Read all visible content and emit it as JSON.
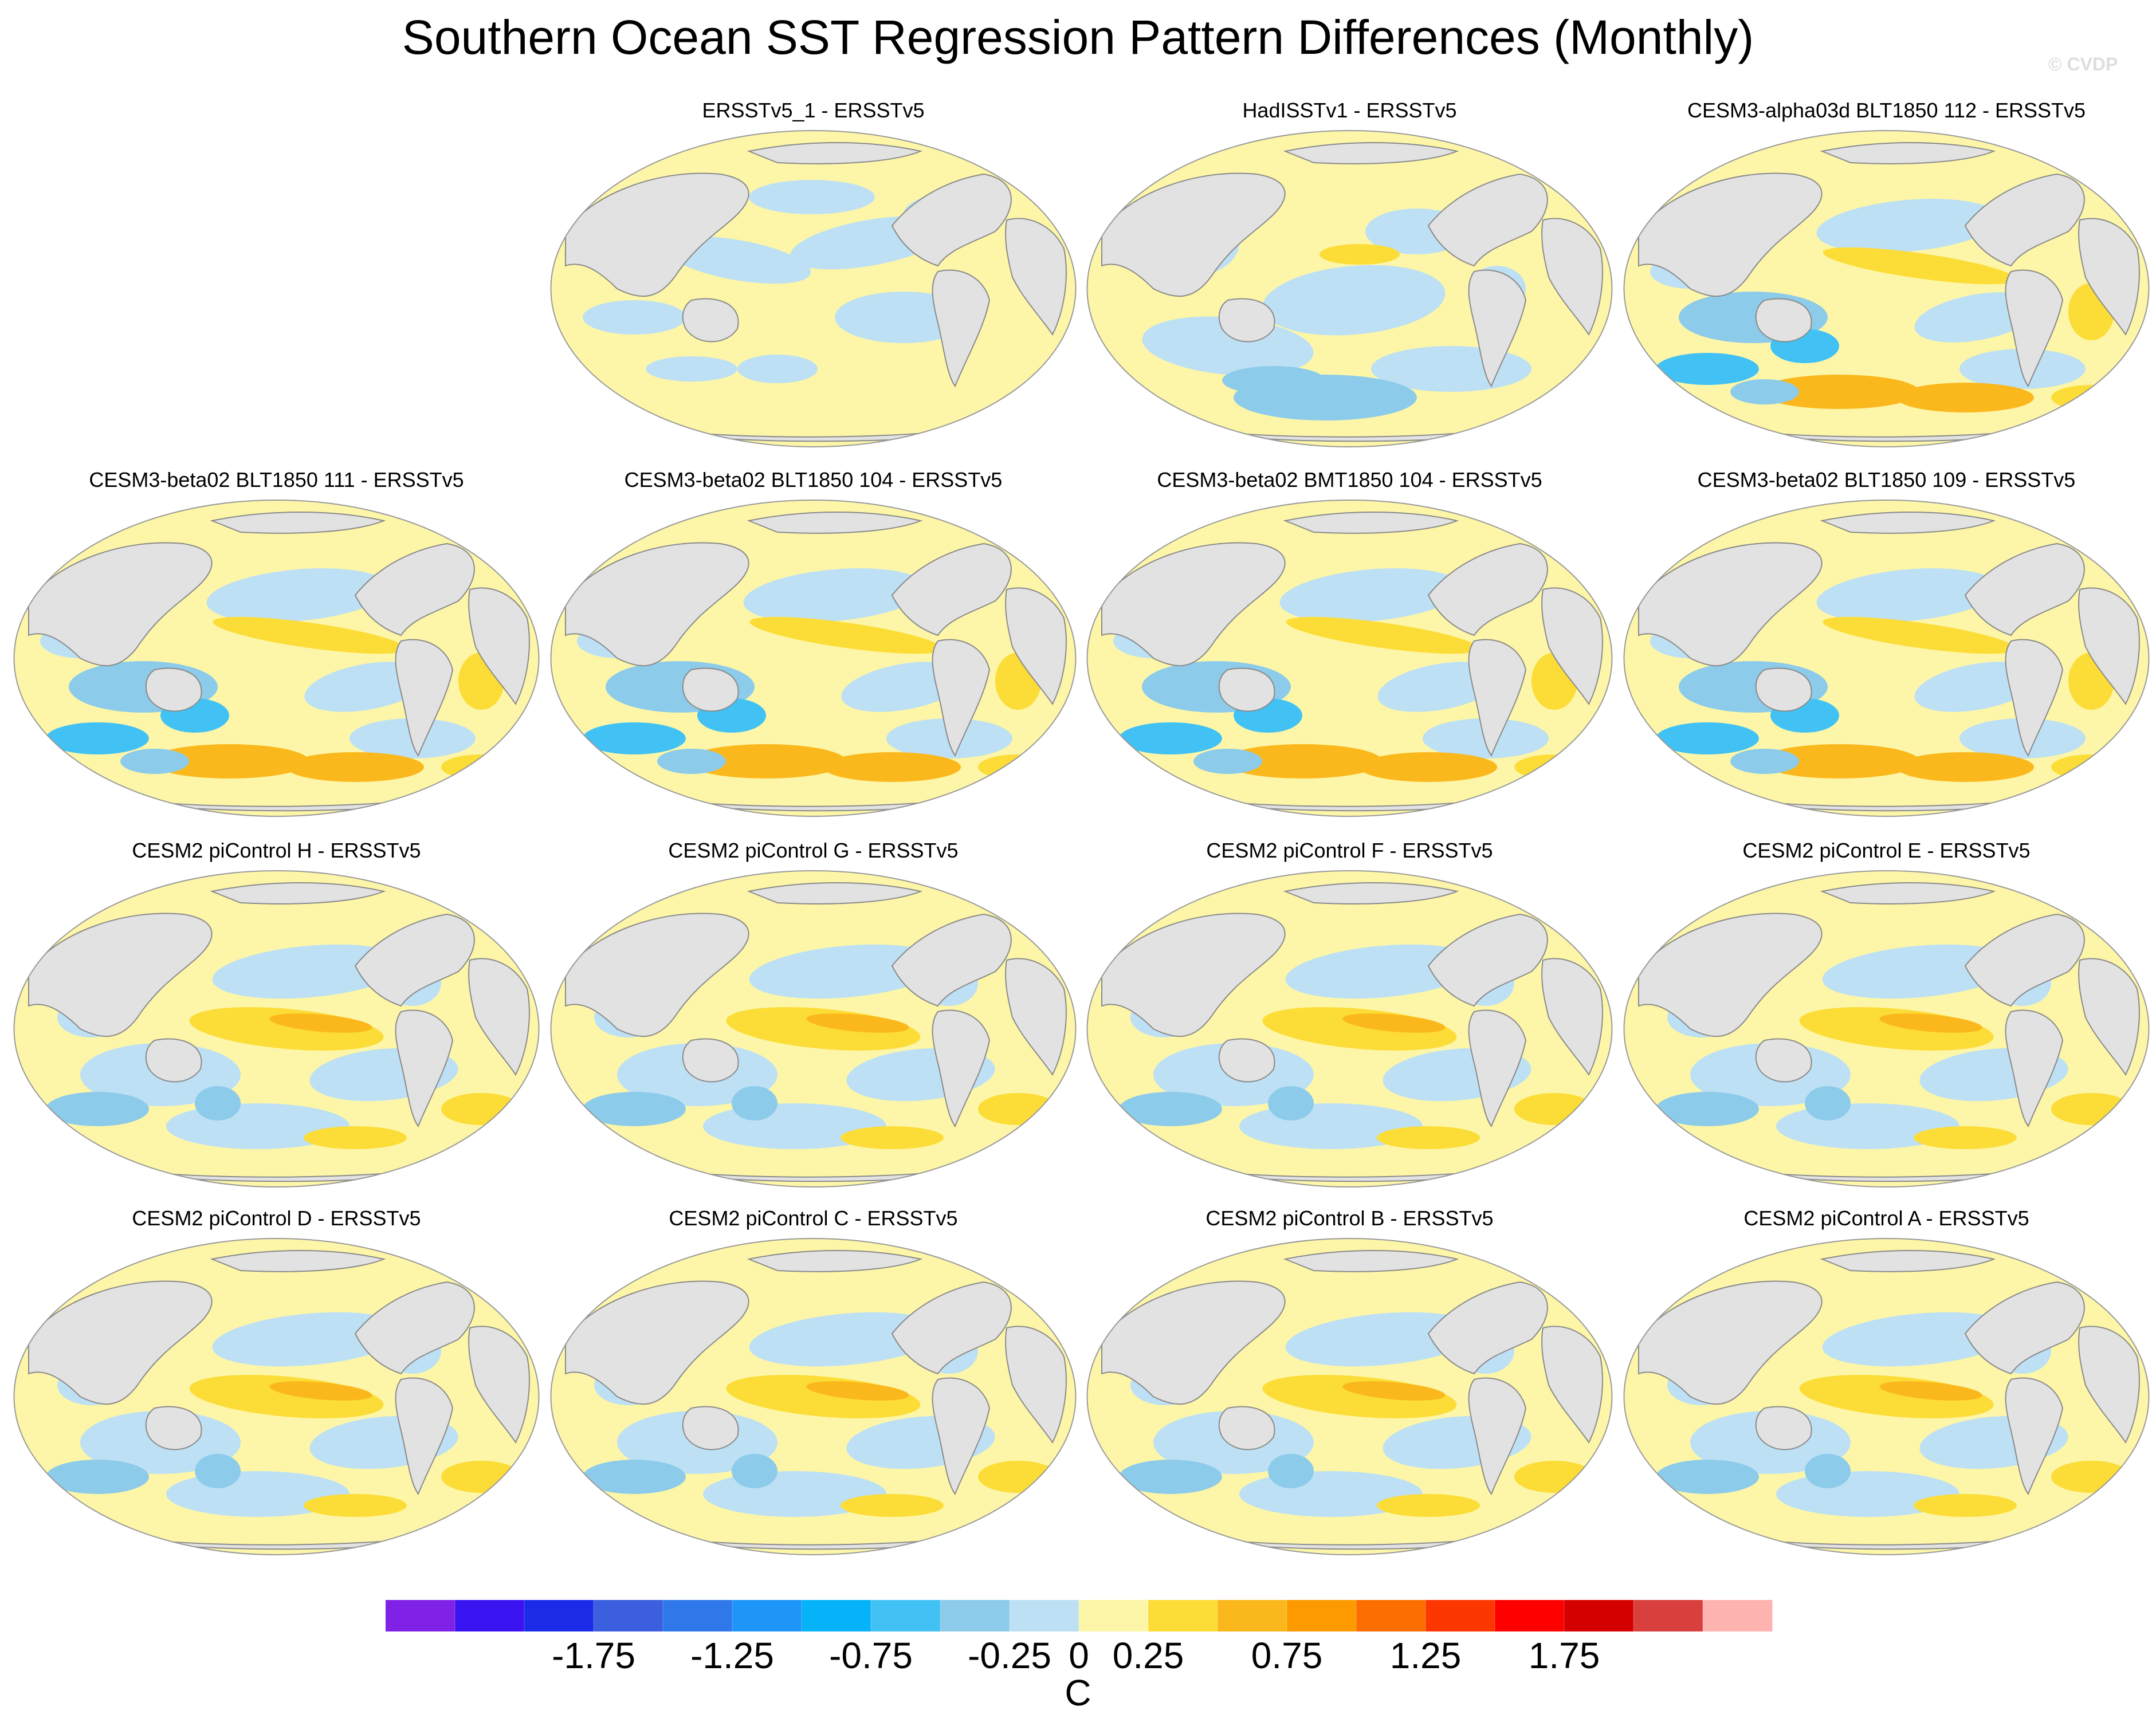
{
  "title": "Southern Ocean SST Regression Pattern Differences (Monthly)",
  "watermark": "© CVDP",
  "panels": [
    {
      "title": "ERSSTv5_1 - ERSSTv5",
      "pattern": "obs1"
    },
    {
      "title": "HadISSTv1 - ERSSTv5",
      "pattern": "obs2"
    },
    {
      "title": "CESM3-alpha03d BLT1850 112 - ERSSTv5",
      "pattern": "strong"
    },
    {
      "title": "CESM3-beta02 BLT1850 111 - ERSSTv5",
      "pattern": "strong"
    },
    {
      "title": "CESM3-beta02 BLT1850 104 - ERSSTv5",
      "pattern": "strong"
    },
    {
      "title": "CESM3-beta02 BMT1850 104 - ERSSTv5",
      "pattern": "strong"
    },
    {
      "title": "CESM3-beta02 BLT1850 109 - ERSSTv5",
      "pattern": "strong"
    },
    {
      "title": "CESM2 piControl H - ERSSTv5",
      "pattern": "cesm2"
    },
    {
      "title": "CESM2 piControl G - ERSSTv5",
      "pattern": "cesm2"
    },
    {
      "title": "CESM2 piControl F - ERSSTv5",
      "pattern": "cesm2"
    },
    {
      "title": "CESM2 piControl E - ERSSTv5",
      "pattern": "cesm2"
    },
    {
      "title": "CESM2 piControl D - ERSSTv5",
      "pattern": "cesm2"
    },
    {
      "title": "CESM2 piControl C - ERSSTv5",
      "pattern": "cesm2"
    },
    {
      "title": "CESM2 piControl B - ERSSTv5",
      "pattern": "cesm2"
    },
    {
      "title": "CESM2 piControl A - ERSSTv5",
      "pattern": "cesm2"
    }
  ],
  "colorbar": {
    "colors": [
      "#7f22e6",
      "#3a14f0",
      "#1a2ce8",
      "#3c5fe0",
      "#2e78ea",
      "#1e96f8",
      "#06b3f8",
      "#42c2f4",
      "#8ccbea",
      "#bde0f4",
      "#fdf6a8",
      "#fcdc36",
      "#fbb81c",
      "#fc9a00",
      "#fc6e00",
      "#fc3800",
      "#ff0000",
      "#d40000",
      "#d9403d",
      "#fdb3b0"
    ],
    "tick_labels": [
      "-1.75",
      "-1.25",
      "-0.75",
      "-0.25",
      "0",
      "0.25",
      "0.75",
      "1.25",
      "1.75"
    ],
    "unit": "C"
  },
  "map_colors": {
    "land": "#e2e2e2",
    "coast": "#8a8a8a",
    "neutral_warm": "#fdf6a8",
    "neutral_cool": "#bde0f4",
    "cool": "#8ccbea",
    "cooler": "#42c2f4",
    "warm": "#fcdc36",
    "warmer": "#fbb81c"
  }
}
